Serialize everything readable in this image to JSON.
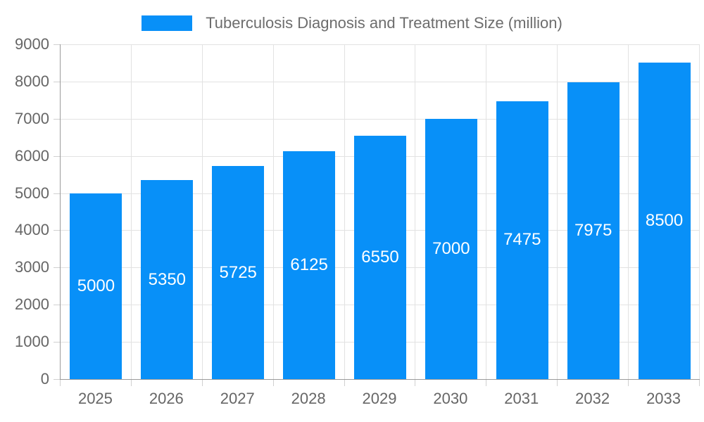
{
  "legend": {
    "label": "Tuberculosis Diagnosis and Treatment Size (million)"
  },
  "chart_data": {
    "type": "bar",
    "title": "Tuberculosis Diagnosis and Treatment Size (million)",
    "categories": [
      "2025",
      "2026",
      "2027",
      "2028",
      "2029",
      "2030",
      "2031",
      "2032",
      "2033"
    ],
    "values": [
      5000,
      5350,
      5725,
      6125,
      6550,
      7000,
      7475,
      7975,
      8500
    ],
    "xlabel": "",
    "ylabel": "",
    "ylim": [
      0,
      9000
    ],
    "yticks": [
      0,
      1000,
      2000,
      3000,
      4000,
      5000,
      6000,
      7000,
      8000,
      9000
    ],
    "grid": true,
    "legend_position": "top",
    "bar_color": "#0890f8",
    "value_label_color": "#ffffff",
    "axis_color": "#9a9a9a",
    "grid_color": "#e2e2e2",
    "tick_color": "#d0d0d0",
    "axis_label_color": "#666666"
  }
}
